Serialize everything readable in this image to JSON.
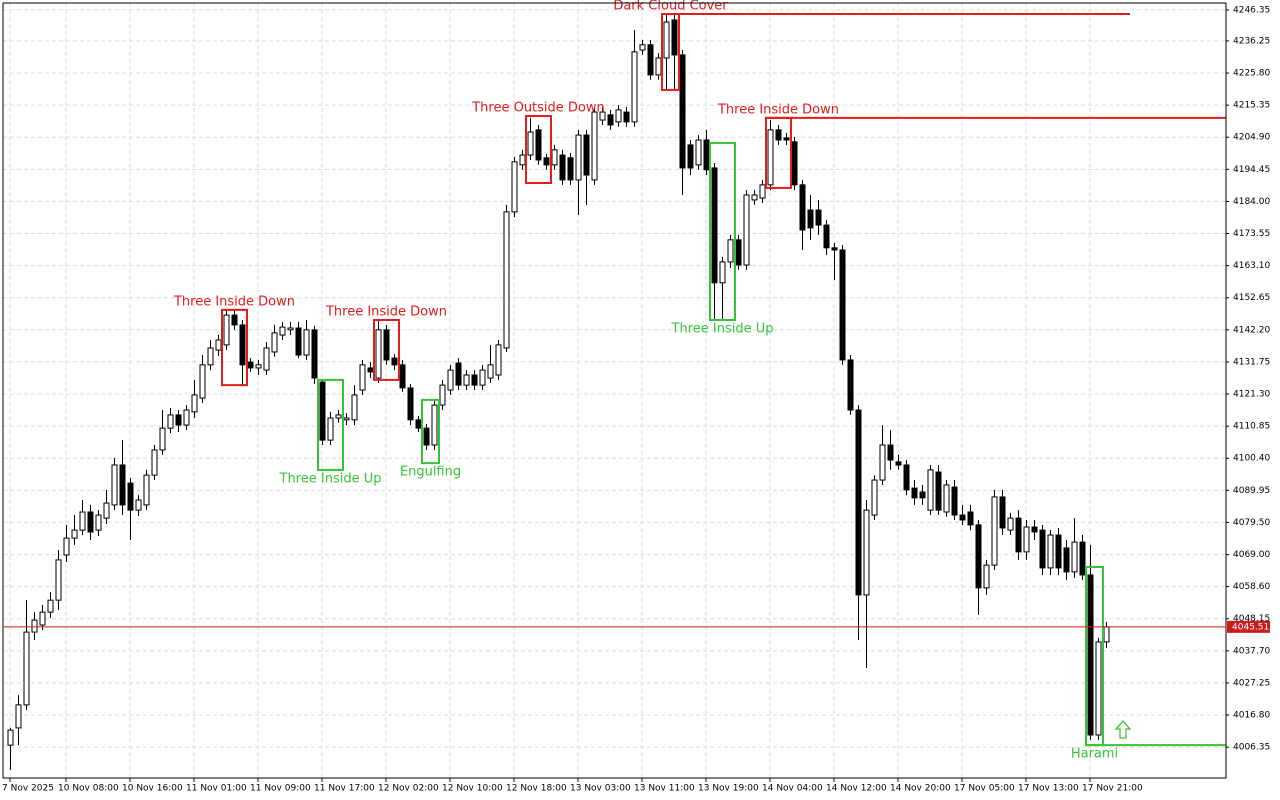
{
  "chart_data": {
    "type": "candlestick",
    "categories": [
      "7 Nov 2025",
      null,
      null,
      null,
      null,
      null,
      null,
      "10 Nov 08:00",
      null,
      null,
      null,
      null,
      null,
      null,
      null,
      "10 Nov 16:00",
      null,
      null,
      null,
      null,
      null,
      null,
      null,
      "11 Nov 01:00",
      null,
      null,
      null,
      null,
      null,
      null,
      null,
      "11 Nov 09:00",
      null,
      null,
      null,
      null,
      null,
      null,
      null,
      "11 Nov 17:00",
      null,
      null,
      null,
      null,
      null,
      null,
      null,
      "12 Nov 02:00",
      null,
      null,
      null,
      null,
      null,
      null,
      null,
      "12 Nov 10:00",
      null,
      null,
      null,
      null,
      null,
      null,
      null,
      "12 Nov 18:00",
      null,
      null,
      null,
      null,
      null,
      null,
      null,
      "13 Nov 03:00",
      null,
      null,
      null,
      null,
      null,
      null,
      null,
      "13 Nov 11:00",
      null,
      null,
      null,
      null,
      null,
      null,
      null,
      "13 Nov 19:00",
      null,
      null,
      null,
      null,
      null,
      null,
      null,
      "14 Nov 04:00",
      null,
      null,
      null,
      null,
      null,
      null,
      null,
      "14 Nov 12:00",
      null,
      null,
      null,
      null,
      null,
      null,
      null,
      "14 Nov 20:00",
      null,
      null,
      null,
      null,
      null,
      null,
      null,
      "17 Nov 05:00",
      null,
      null,
      null,
      null,
      null,
      null,
      null,
      "17 Nov 13:00",
      null,
      null,
      null,
      null,
      null,
      null,
      null,
      "17 Nov 21:00",
      null,
      null
    ],
    "ohlc": [
      [
        4007.0,
        4012.6,
        3998.9,
        4011.9
      ],
      [
        4012.6,
        4023.3,
        4007.0,
        4020.1
      ],
      [
        4020.1,
        4054.2,
        4018.4,
        4043.8
      ],
      [
        4043.8,
        4050.3,
        4041.2,
        4047.7
      ],
      [
        4046.1,
        4052.6,
        4044.5,
        4050.3
      ],
      [
        4050.3,
        4056.8,
        4048.4,
        4054.2
      ],
      [
        4054.2,
        4070.5,
        4051.0,
        4067.3
      ],
      [
        4068.9,
        4078.7,
        4066.6,
        4074.4
      ],
      [
        4074.4,
        4081.9,
        4072.2,
        4077.0
      ],
      [
        4077.0,
        4086.8,
        4075.4,
        4082.9
      ],
      [
        4082.9,
        4085.2,
        4073.8,
        4076.4
      ],
      [
        4077.0,
        4083.5,
        4075.1,
        4081.9
      ],
      [
        4080.9,
        4090.1,
        4079.0,
        4085.8
      ],
      [
        4085.2,
        4100.5,
        4083.5,
        4098.2
      ],
      [
        4098.2,
        4106.3,
        4081.9,
        4085.2
      ],
      [
        4092.3,
        4094.0,
        4073.8,
        4083.5
      ],
      [
        4083.5,
        4088.4,
        4081.6,
        4086.8
      ],
      [
        4085.2,
        4096.6,
        4083.5,
        4094.9
      ],
      [
        4094.9,
        4104.7,
        4093.3,
        4103.1
      ],
      [
        4103.1,
        4116.1,
        4101.5,
        4110.2
      ],
      [
        4110.2,
        4116.8,
        4108.6,
        4114.5
      ],
      [
        4114.5,
        4116.1,
        4108.9,
        4111.2
      ],
      [
        4111.2,
        4117.7,
        4109.6,
        4116.1
      ],
      [
        4115.5,
        4125.9,
        4113.5,
        4121.0
      ],
      [
        4120.0,
        4134.0,
        4118.4,
        4130.8
      ],
      [
        4130.8,
        4138.9,
        4129.1,
        4136.3
      ],
      [
        4135.6,
        4140.5,
        4133.7,
        4138.9
      ],
      [
        4137.3,
        4148.7,
        4135.6,
        4147.0
      ],
      [
        4147.0,
        4148.7,
        4142.2,
        4143.8
      ],
      [
        4143.8,
        4145.4,
        4124.2,
        4130.8
      ],
      [
        4131.7,
        4133.0,
        4128.5,
        4129.8
      ],
      [
        4129.8,
        4132.4,
        4127.5,
        4130.8
      ],
      [
        4129.1,
        4138.2,
        4127.5,
        4136.3
      ],
      [
        4135.0,
        4143.8,
        4133.4,
        4141.2
      ],
      [
        4140.5,
        4144.8,
        4138.9,
        4143.1
      ],
      [
        4142.2,
        4144.8,
        4140.5,
        4142.8
      ],
      [
        4142.8,
        4144.8,
        4133.0,
        4134.0
      ],
      [
        4134.0,
        4145.4,
        4132.4,
        4142.2
      ],
      [
        4142.2,
        4143.5,
        4124.6,
        4126.5
      ],
      [
        4125.2,
        4125.9,
        4104.7,
        4106.3
      ],
      [
        4106.3,
        4115.5,
        4104.7,
        4113.5
      ],
      [
        4113.5,
        4116.1,
        4111.9,
        4114.5
      ],
      [
        4112.9,
        4115.1,
        4111.2,
        4113.5
      ],
      [
        4112.9,
        4124.2,
        4111.2,
        4121.0
      ],
      [
        4122.6,
        4132.4,
        4121.0,
        4130.8
      ],
      [
        4129.8,
        4131.7,
        4126.5,
        4128.5
      ],
      [
        4126.5,
        4145.4,
        4124.9,
        4142.2
      ],
      [
        4142.2,
        4143.8,
        4130.8,
        4132.4
      ],
      [
        4133.0,
        4134.3,
        4129.1,
        4130.8
      ],
      [
        4130.8,
        4132.4,
        4122.0,
        4123.3
      ],
      [
        4123.3,
        4124.6,
        4111.2,
        4112.9
      ],
      [
        4112.9,
        4114.2,
        4108.9,
        4110.2
      ],
      [
        4110.2,
        4111.6,
        4103.1,
        4104.7
      ],
      [
        4104.7,
        4119.4,
        4103.1,
        4117.7
      ],
      [
        4117.7,
        4125.9,
        4116.1,
        4124.2
      ],
      [
        4122.6,
        4130.8,
        4121.0,
        4129.1
      ],
      [
        4131.4,
        4133.0,
        4122.6,
        4124.2
      ],
      [
        4124.2,
        4129.1,
        4122.6,
        4127.5
      ],
      [
        4127.5,
        4129.1,
        4122.6,
        4124.2
      ],
      [
        4124.2,
        4130.8,
        4122.6,
        4129.1
      ],
      [
        4126.5,
        4137.3,
        4124.9,
        4130.8
      ],
      [
        4127.5,
        4138.9,
        4125.9,
        4137.3
      ],
      [
        4136.3,
        4182.9,
        4135.0,
        4180.6
      ],
      [
        4180.6,
        4198.5,
        4178.9,
        4196.9
      ],
      [
        4195.9,
        4200.8,
        4194.3,
        4199.1
      ],
      [
        4199.1,
        4211.2,
        4197.5,
        4206.6
      ],
      [
        4207.3,
        4208.9,
        4195.9,
        4197.5
      ],
      [
        4198.2,
        4199.5,
        4194.3,
        4195.9
      ],
      [
        4195.9,
        4202.4,
        4194.3,
        4200.8
      ],
      [
        4199.1,
        4200.8,
        4189.4,
        4191.0
      ],
      [
        4198.2,
        4199.8,
        4189.4,
        4191.0
      ],
      [
        4191.0,
        4207.3,
        4179.6,
        4205.6
      ],
      [
        4205.6,
        4207.3,
        4182.9,
        4192.6
      ],
      [
        4191.0,
        4214.4,
        4189.4,
        4213.1
      ],
      [
        4210.5,
        4214.8,
        4208.9,
        4213.1
      ],
      [
        4212.2,
        4213.8,
        4207.3,
        4208.9
      ],
      [
        4209.9,
        4215.4,
        4208.3,
        4213.8
      ],
      [
        4213.1,
        4214.8,
        4208.3,
        4209.9
      ],
      [
        4209.9,
        4239.8,
        4208.3,
        4232.7
      ],
      [
        4233.3,
        4236.6,
        4231.7,
        4235.0
      ],
      [
        4235.0,
        4236.6,
        4223.6,
        4225.2
      ],
      [
        4225.2,
        4232.3,
        4223.6,
        4230.7
      ],
      [
        4230.7,
        4244.7,
        4220.3,
        4242.4
      ],
      [
        4243.1,
        4244.7,
        4220.3,
        4231.7
      ],
      [
        4231.7,
        4233.3,
        4186.1,
        4194.9
      ],
      [
        4202.4,
        4204.0,
        4192.6,
        4194.9
      ],
      [
        4195.9,
        4205.6,
        4194.3,
        4204.0
      ],
      [
        4204.0,
        4207.3,
        4192.6,
        4194.3
      ],
      [
        4194.9,
        4196.5,
        4145.4,
        4157.5
      ],
      [
        4157.5,
        4165.9,
        4145.4,
        4164.3
      ],
      [
        4164.3,
        4173.1,
        4162.3,
        4171.5
      ],
      [
        4171.5,
        4173.1,
        4161.7,
        4163.3
      ],
      [
        4163.3,
        4187.7,
        4161.7,
        4186.1
      ],
      [
        4184.5,
        4187.7,
        4182.9,
        4186.1
      ],
      [
        4185.1,
        4191.0,
        4183.5,
        4189.4
      ],
      [
        4189.4,
        4210.5,
        4187.7,
        4207.3
      ],
      [
        4207.3,
        4208.9,
        4202.4,
        4204.0
      ],
      [
        4204.7,
        4206.3,
        4202.4,
        4204.0
      ],
      [
        4203.4,
        4205.0,
        4187.7,
        4189.4
      ],
      [
        4189.4,
        4191.0,
        4168.2,
        4174.7
      ],
      [
        4181.2,
        4186.1,
        4171.5,
        4175.4
      ],
      [
        4181.2,
        4184.5,
        4173.1,
        4176.3
      ],
      [
        4176.3,
        4178.0,
        4166.6,
        4168.9
      ],
      [
        4168.9,
        4170.5,
        4158.4,
        4168.2
      ],
      [
        4168.2,
        4169.8,
        4130.8,
        4132.4
      ],
      [
        4132.4,
        4134.0,
        4114.5,
        4116.1
      ],
      [
        4116.1,
        4117.7,
        4041.2,
        4055.9
      ],
      [
        4055.9,
        4086.8,
        4032.1,
        4083.5
      ],
      [
        4081.9,
        4094.9,
        4080.3,
        4093.3
      ],
      [
        4093.3,
        4111.2,
        4091.7,
        4104.7
      ],
      [
        4104.7,
        4109.6,
        4096.6,
        4099.8
      ],
      [
        4099.2,
        4101.5,
        4096.6,
        4098.2
      ],
      [
        4098.2,
        4099.8,
        4088.4,
        4090.1
      ],
      [
        4090.7,
        4093.3,
        4085.2,
        4087.5
      ],
      [
        4089.4,
        4091.7,
        4085.2,
        4087.5
      ],
      [
        4083.5,
        4098.2,
        4081.9,
        4096.6
      ],
      [
        4095.9,
        4098.2,
        4081.9,
        4083.5
      ],
      [
        4082.9,
        4093.3,
        4081.3,
        4091.7
      ],
      [
        4091.0,
        4093.3,
        4080.3,
        4081.9
      ],
      [
        4081.9,
        4085.2,
        4078.7,
        4080.3
      ],
      [
        4082.9,
        4085.2,
        4077.0,
        4078.7
      ],
      [
        4078.7,
        4080.3,
        4049.4,
        4058.2
      ],
      [
        4058.2,
        4067.3,
        4055.9,
        4065.6
      ],
      [
        4065.6,
        4090.1,
        4064.0,
        4087.8
      ],
      [
        4087.8,
        4090.1,
        4075.4,
        4077.7
      ],
      [
        4077.0,
        4082.6,
        4075.4,
        4080.9
      ],
      [
        4080.9,
        4083.5,
        4067.3,
        4069.9
      ],
      [
        4069.9,
        4080.3,
        4067.3,
        4078.0
      ],
      [
        4078.0,
        4080.3,
        4073.8,
        4076.4
      ],
      [
        4077.0,
        4078.7,
        4062.4,
        4064.7
      ],
      [
        4064.7,
        4077.0,
        4062.4,
        4075.4
      ],
      [
        4075.4,
        4077.7,
        4062.4,
        4064.7
      ],
      [
        4071.2,
        4073.8,
        4060.8,
        4063.4
      ],
      [
        4063.4,
        4080.9,
        4061.4,
        4073.1
      ],
      [
        4073.1,
        4075.4,
        4060.8,
        4062.4
      ],
      [
        4062.4,
        4072.2,
        4008.7,
        4010.3
      ],
      [
        4010.3,
        4041.9,
        4008.7,
        4040.6
      ],
      [
        4040.6,
        4047.1,
        4038.6,
        4045.51
      ]
    ],
    "ylim": [
      3996.3,
      4248.6
    ],
    "yticks": [
      4246.35,
      4236.25,
      {
        "value": 4225.8,
        "label": "4225.80"
      },
      4215.35,
      {
        "value": 4204.9,
        "label": "4204.90"
      },
      4194.45,
      {
        "value": 4184,
        "label": "4184.00"
      },
      4173.55,
      {
        "value": 4163.1,
        "label": "4163.10"
      },
      4152.65,
      {
        "value": 4142.2,
        "label": "4142.20"
      },
      4131.75,
      {
        "value": 4121.3,
        "label": "4121.30"
      },
      4110.85,
      {
        "value": 4100.4,
        "label": "4100.40"
      },
      4089.95,
      {
        "value": 4079.5,
        "label": "4079.50"
      },
      {
        "value": 4069,
        "label": "4069.00"
      },
      {
        "value": 4058.6,
        "label": "4058.60"
      },
      4048.15,
      {
        "value": 4037.7,
        "label": "4037.70"
      },
      4027.25,
      {
        "value": 4016.8,
        "label": "4016.80"
      },
      4006.35
    ],
    "grid": true,
    "current_price": 4045.51,
    "current_price_color": "#c81e1e",
    "up_color": "#ffffff",
    "down_color": "#000000",
    "patterns": [
      {
        "label": "Three Inside Down",
        "color": "#e31b1b",
        "start": 27,
        "end": 29,
        "high": 4148.7,
        "low": 4124.2,
        "position": "above"
      },
      {
        "label": "Three Inside Up",
        "color": "#35c435",
        "start": 39,
        "end": 41,
        "high": 4125.9,
        "low": 4096.6,
        "position": "below"
      },
      {
        "label": "Three Inside Down",
        "color": "#e31b1b",
        "start": 46,
        "end": 48,
        "high": 4145.4,
        "low": 4125.9,
        "position": "above"
      },
      {
        "label": "Engulfing",
        "color": "#35c435",
        "start": 52,
        "end": 53,
        "high": 4119.4,
        "low": 4098.8,
        "position": "below"
      },
      {
        "label": "Three Outside Down",
        "color": "#e31b1b",
        "start": 65,
        "end": 67,
        "high": 4211.8,
        "low": 4190.0,
        "position": "above"
      },
      {
        "label": "Dark Cloud Cover",
        "color": "#e31b1b",
        "start": 82,
        "end": 83,
        "high": 4245.0,
        "low": 4220.3,
        "position": "above",
        "line": "high",
        "line_to": 140
      },
      {
        "label": "Three Inside Up",
        "color": "#35c435",
        "start": 88,
        "end": 90,
        "high": 4203.0,
        "low": 4145.4,
        "position": "below"
      },
      {
        "label": "Three Inside Down",
        "color": "#e31b1b",
        "start": 95,
        "end": 97,
        "high": 4211.2,
        "low": 4188.4,
        "position": "above",
        "line": "high",
        "line_to": 152
      },
      {
        "label": "Harami",
        "color": "#35c435",
        "start": 135,
        "end": 136,
        "high": 4065.0,
        "low": 4007.0,
        "position": "below",
        "line": "low",
        "line_to": 152
      }
    ]
  }
}
